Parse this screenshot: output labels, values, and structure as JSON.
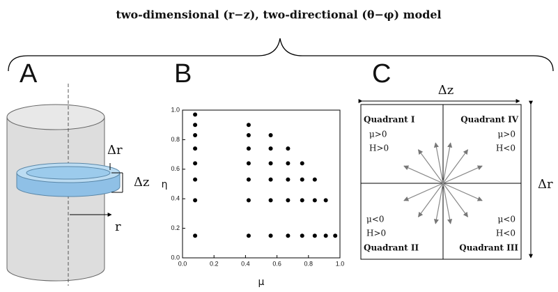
{
  "title": "two-dimensional (r−z), two-directional (θ−φ) model",
  "panel_a": {
    "label": "A",
    "delta_r": "Δr",
    "delta_z": "Δz",
    "r": "r"
  },
  "panel_b": {
    "label": "B",
    "chart": {
      "type": "scatter",
      "x_label": "μ",
      "y_label": "η",
      "color": "#000000",
      "x": [
        0.08,
        0.08,
        0.08,
        0.08,
        0.08,
        0.08,
        0.08,
        0.08,
        0.42,
        0.42,
        0.42,
        0.42,
        0.42,
        0.42,
        0.42,
        0.56,
        0.56,
        0.56,
        0.56,
        0.56,
        0.56,
        0.67,
        0.67,
        0.67,
        0.67,
        0.67,
        0.76,
        0.76,
        0.76,
        0.76,
        0.84,
        0.84,
        0.84,
        0.91,
        0.91,
        0.97
      ],
      "y": [
        0.97,
        0.9,
        0.83,
        0.74,
        0.64,
        0.53,
        0.39,
        0.15,
        0.9,
        0.83,
        0.74,
        0.64,
        0.53,
        0.39,
        0.15,
        0.83,
        0.74,
        0.64,
        0.53,
        0.39,
        0.15,
        0.74,
        0.64,
        0.53,
        0.39,
        0.15,
        0.64,
        0.53,
        0.39,
        0.15,
        0.53,
        0.39,
        0.15,
        0.39,
        0.15,
        0.15
      ],
      "xlim": [
        0,
        1
      ],
      "ylim": [
        0,
        1
      ],
      "xticks": [
        {
          "value": 0,
          "label": "0.0"
        },
        {
          "value": 0.2,
          "label": "0.2"
        },
        {
          "value": 0.4,
          "label": "0.4"
        },
        {
          "value": 0.6,
          "label": "0.6"
        },
        {
          "value": 0.8,
          "label": "0.8"
        },
        {
          "value": 1,
          "label": "1.0"
        }
      ],
      "yticks": [
        {
          "value": 0,
          "label": "0.0"
        },
        {
          "value": 0.2,
          "label": "0.2"
        },
        {
          "value": 0.4,
          "label": "0.4"
        },
        {
          "value": 0.6,
          "label": "0.6"
        },
        {
          "value": 0.8,
          "label": "0.8"
        },
        {
          "value": 1,
          "label": "1.0"
        }
      ]
    }
  },
  "panel_c": {
    "label": "C",
    "delta_z": "Δz",
    "delta_r": "Δr",
    "quadrants": [
      {
        "name": "Quadrant I",
        "mu": "μ>0",
        "h": "H>0"
      },
      {
        "name": "Quadrant IV",
        "mu": "μ>0",
        "h": "H<0"
      },
      {
        "name": "Quadrant II",
        "mu": "μ<0",
        "h": "H>0"
      },
      {
        "name": "Quadrant III",
        "mu": "μ<0",
        "h": "H<0"
      }
    ]
  }
}
